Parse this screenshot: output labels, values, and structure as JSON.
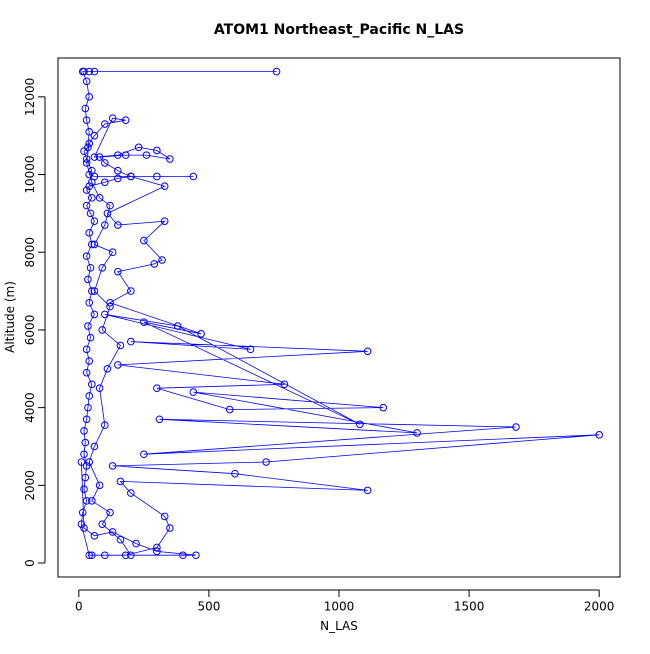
{
  "chart_data": {
    "type": "scatter-line",
    "title": "ATOM1 Northeast_Pacific N_LAS",
    "x_label": "N_LAS",
    "y_label": "Altitude (m)",
    "color": "#0000ff",
    "xlim": [
      -80,
      2080
    ],
    "xticks": [
      0,
      500,
      1000,
      1500,
      2000
    ],
    "ylim": [
      -360,
      13000
    ],
    "yticks": [
      0,
      2000,
      4000,
      6000,
      8000,
      10000,
      12000
    ],
    "x": [
      760,
      60,
      40,
      20,
      15,
      30,
      40,
      25,
      30,
      40,
      35,
      20,
      30,
      50,
      40,
      60,
      440,
      300,
      200,
      150,
      100,
      40,
      30,
      50,
      30,
      45,
      60,
      40,
      50,
      30,
      45,
      35,
      50,
      40,
      60,
      35,
      45,
      30,
      40,
      30,
      50,
      40,
      35,
      30,
      20,
      25,
      20,
      30,
      25,
      20,
      30,
      15,
      10,
      40,
      50,
      100,
      180,
      300,
      350,
      330,
      200,
      160,
      1110,
      600,
      130,
      720,
      2000,
      250,
      1680,
      310,
      1300,
      440,
      1170,
      580,
      300,
      790,
      150,
      1110,
      200,
      660,
      100,
      380,
      1080,
      250,
      470,
      120,
      200,
      150,
      290,
      320,
      250,
      330,
      150,
      110,
      330,
      200,
      150,
      100,
      80,
      180,
      260,
      350,
      300,
      230,
      150,
      60,
      130,
      180,
      100,
      60,
      40,
      30,
      50,
      80,
      120,
      100,
      60,
      130,
      90,
      60,
      120,
      90,
      160,
      110,
      80,
      100,
      60,
      40,
      80,
      50,
      120,
      90,
      160,
      200,
      400,
      450,
      300,
      220,
      130,
      60,
      20,
      10
    ],
    "values": [
      12650,
      12650,
      12650,
      12650,
      12650,
      12400,
      12000,
      11700,
      11400,
      11100,
      10700,
      10600,
      10400,
      10100,
      10000,
      9950,
      9950,
      9950,
      9950,
      9900,
      9800,
      9700,
      9600,
      9400,
      9200,
      9000,
      8800,
      8500,
      8200,
      7900,
      7600,
      7300,
      7000,
      6700,
      6400,
      6100,
      5800,
      5500,
      5200,
      4900,
      4600,
      4300,
      4000,
      3700,
      3400,
      3100,
      2800,
      2500,
      2200,
      1900,
      1600,
      1300,
      1000,
      200,
      200,
      200,
      200,
      400,
      900,
      1200,
      1800,
      2100,
      1870,
      2300,
      2500,
      2600,
      3300,
      2800,
      3500,
      3700,
      3350,
      4400,
      4000,
      3950,
      4500,
      4600,
      5100,
      5450,
      5700,
      5500,
      6400,
      6100,
      3570,
      6200,
      5900,
      6700,
      7000,
      7500,
      7700,
      7800,
      8300,
      8800,
      8700,
      9000,
      9700,
      9950,
      10100,
      10300,
      10450,
      10500,
      10500,
      10400,
      10620,
      10700,
      10500,
      10450,
      11450,
      11400,
      11300,
      11000,
      10800,
      10300,
      9800,
      9400,
      9200,
      8700,
      8200,
      8000,
      7600,
      7000,
      6600,
      6000,
      5600,
      5000,
      4500,
      3550,
      3000,
      2600,
      2000,
      1600,
      1300,
      1000,
      600,
      200,
      200,
      200,
      300,
      500,
      800,
      700,
      900,
      2600
    ]
  }
}
